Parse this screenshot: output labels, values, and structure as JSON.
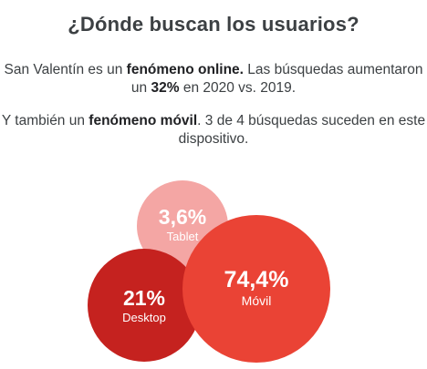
{
  "header": {
    "title": "¿Dónde buscan los usuarios?"
  },
  "paragraphs": [
    {
      "parts": [
        {
          "text": "San Valentín es un ",
          "bold": false
        },
        {
          "text": "fenómeno online.",
          "bold": true
        },
        {
          "text": " Las búsquedas aumentaron un ",
          "bold": false
        },
        {
          "text": "32%",
          "bold": true
        },
        {
          "text": " en 2020 vs. 2019.",
          "bold": false
        }
      ]
    },
    {
      "parts": [
        {
          "text": "Y también un ",
          "bold": false
        },
        {
          "text": "fenómeno móvil",
          "bold": true
        },
        {
          "text": ". 3 de 4 búsquedas suceden en este dispositivo.",
          "bold": false
        }
      ]
    }
  ],
  "chart_data": {
    "type": "bubble",
    "title": "",
    "series": [
      {
        "name": "Tablet",
        "label": "3,6%",
        "value": 3.6,
        "color": "#f4a6a4"
      },
      {
        "name": "Desktop",
        "label": "21%",
        "value": 21,
        "color": "#c5221f"
      },
      {
        "name": "Móvil",
        "label": "74,4%",
        "value": 74.4,
        "color": "#ea4335"
      }
    ]
  }
}
